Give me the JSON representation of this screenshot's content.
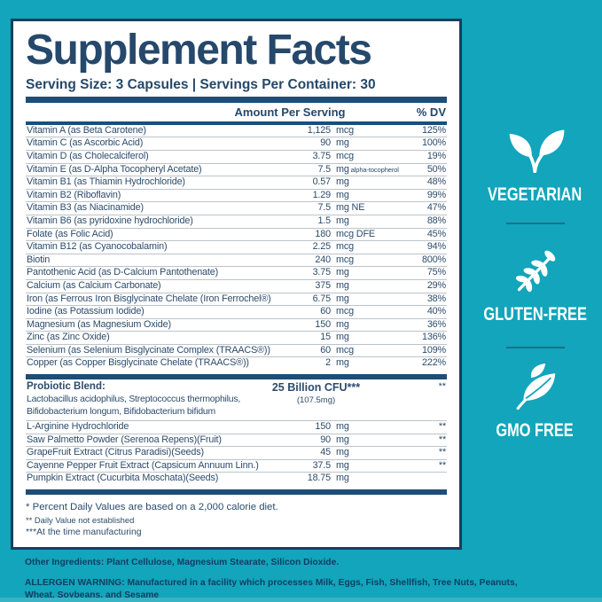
{
  "header": {
    "title": "Supplement Facts",
    "serving_line": "Serving Size: 3 Capsules | Servings Per Container: 30"
  },
  "table": {
    "columns": {
      "amount": "Amount Per Serving",
      "dv": "% DV"
    },
    "rows": [
      {
        "name": "Vitamin A (as Beta Carotene)",
        "value": "1,125",
        "unit": "mcg",
        "dv": "125%"
      },
      {
        "name": "Vitamin C (as Ascorbic Acid)",
        "value": "90",
        "unit": "mg",
        "dv": "100%"
      },
      {
        "name": "Vitamin D (as Cholecalciferol)",
        "value": "3.75",
        "unit": "mcg",
        "dv": "19%"
      },
      {
        "name": "Vitamin E (as D-Alpha Tocopheryl Acetate)",
        "value": "7.5",
        "unit": "mg",
        "unit_note": "alpha-tocopherol",
        "dv": "50%"
      },
      {
        "name": "Vitamin B1 (as Thiamin Hydrochloride)",
        "value": "0.57",
        "unit": "mg",
        "dv": "48%"
      },
      {
        "name": "Vitamin B2 (Riboflavin)",
        "value": "1.29",
        "unit": "mg",
        "dv": "99%"
      },
      {
        "name": "Vitamin B3 (as Niacinamide)",
        "value": "7.5",
        "unit": "mg NE",
        "dv": "47%"
      },
      {
        "name": "Vitamin B6 (as pyridoxine hydrochloride)",
        "value": "1.5",
        "unit": "mg",
        "dv": "88%"
      },
      {
        "name": "Folate (as Folic Acid)",
        "value": "180",
        "unit": "mcg DFE",
        "dv": "45%"
      },
      {
        "name": "Vitamin B12 (as Cyanocobalamin)",
        "value": "2.25",
        "unit": "mcg",
        "dv": "94%"
      },
      {
        "name": "Biotin",
        "value": "240",
        "unit": "mcg",
        "dv": "800%"
      },
      {
        "name": "Pantothenic Acid (as D-Calcium Pantothenate)",
        "value": "3.75",
        "unit": "mg",
        "dv": "75%"
      },
      {
        "name": "Calcium (as Calcium Carbonate)",
        "value": "375",
        "unit": "mg",
        "dv": "29%"
      },
      {
        "name": "Iron (as Ferrous Iron Bisglycinate Chelate (Iron Ferrochel®)",
        "value": "6.75",
        "unit": "mg",
        "dv": "38%"
      },
      {
        "name": "Iodine (as Potassium Iodide)",
        "value": "60",
        "unit": "mcg",
        "dv": "40%"
      },
      {
        "name": "Magnesium (as Magnesium Oxide)",
        "value": "150",
        "unit": "mg",
        "dv": "36%"
      },
      {
        "name": "Zinc (as Zinc Oxide)",
        "value": "15",
        "unit": "mg",
        "dv": "136%"
      },
      {
        "name": "Selenium (as Selenium Bisglycinate Complex (TRAACS®))",
        "value": "60",
        "unit": "mcg",
        "dv": "109%"
      },
      {
        "name": "Copper (as Copper Bisglycinate Chelate (TRAACS®))",
        "value": "2",
        "unit": "mg",
        "dv": "222%"
      }
    ],
    "probiotic": {
      "title": "Probiotic Blend:",
      "desc_line1": "Lactobacillus acidophilus, Streptococcus thermophilus,",
      "desc_line2": "Bifidobacterium longum, Bifidobacterium bifidum",
      "amount": "25 Billion CFU***",
      "amount_sub": "(107.5mg)",
      "dv": "**"
    },
    "botanical_rows": [
      {
        "name": "L-Arginine Hydrochloride",
        "value": "150",
        "unit": "mg",
        "dv": "**"
      },
      {
        "name": "Saw Palmetto Powder (Serenoa Repens)(Fruit)",
        "value": "90",
        "unit": "mg",
        "dv": "**"
      },
      {
        "name": "GrapeFruit Extract (Citrus Paradisi)(Seeds)",
        "value": "45",
        "unit": "mg",
        "dv": "**"
      },
      {
        "name": "Cayenne Pepper Fruit Extract (Capsicum Annuum Linn.)",
        "value": "37.5",
        "unit": "mg",
        "dv": "**"
      },
      {
        "name": "Pumpkin Extract (Cucurbita Moschata)(Seeds)",
        "value": "18.75",
        "unit": "mg",
        "dv": ""
      }
    ],
    "footnotes": [
      "* Percent Daily Values are based on a 2,000 calorie diet.",
      "** Daily Value not established",
      "***At the time manufacturing"
    ]
  },
  "badges": [
    {
      "icon": "sprout-icon",
      "label": "VEGETARIAN"
    },
    {
      "icon": "wheat-icon",
      "label": "GLUTEN-FREE"
    },
    {
      "icon": "leaf-icon",
      "label": "GMO FREE"
    }
  ],
  "footer": {
    "other_label": "Other Ingredients:",
    "other_text": " Plant Cellulose, Magnesium Stearate, Silicon Dioxide.",
    "allergen_label": "ALLERGEN WARNING:",
    "allergen_text": " Manufactured in a facility which processes Milk, Eggs, Fish, Shellfish, Tree Nuts, Peanuts, Wheat, Soybeans, and Sesame"
  },
  "colors": {
    "background_teal": "#12a5bb",
    "bottom_strip_teal": "#3ab3c4",
    "navy_text": "#25486b",
    "panel_border": "#1c3c60",
    "bar_navy": "#1d4e78",
    "row_divider": "#bcc4ca",
    "badge_white": "#ffffff"
  }
}
